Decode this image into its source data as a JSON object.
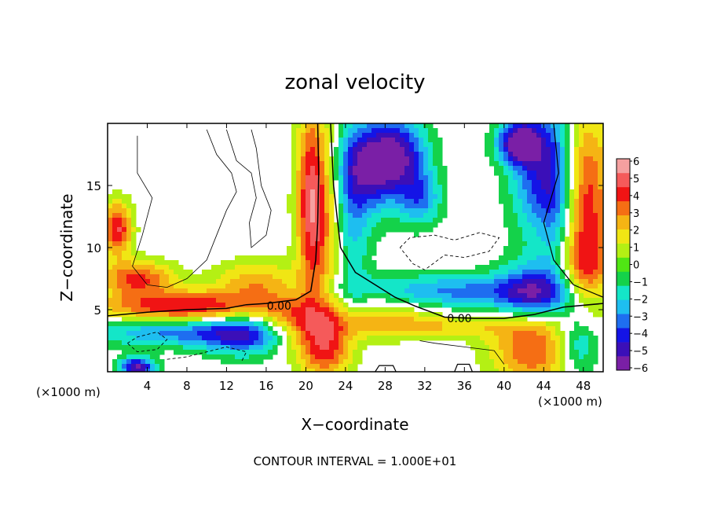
{
  "chart_data": {
    "type": "heatmap",
    "title": "zonal velocity",
    "xlabel": "X−coordinate",
    "ylabel": "Z−coordinate",
    "x_unit_left": "(×1000 m)",
    "x_unit_right": "(×1000 m)",
    "xlim": [
      0,
      50
    ],
    "ylim": [
      0,
      20
    ],
    "xticks": [
      4,
      8,
      12,
      16,
      20,
      24,
      28,
      32,
      36,
      40,
      44,
      48
    ],
    "yticks": [
      5,
      10,
      15
    ],
    "colorbar": {
      "min": -6,
      "max": 6,
      "labels": [
        "6",
        "5",
        "4",
        "3",
        "2",
        "1",
        "0",
        "−1",
        "−2",
        "−3",
        "−4",
        "−5",
        "−6"
      ],
      "colors": [
        "#7a1fa6",
        "#3b0fb8",
        "#1414e6",
        "#1e6ef0",
        "#1ebef0",
        "#14e6c8",
        "#14d24a",
        "#50e614",
        "#b4f014",
        "#f0e614",
        "#f5b414",
        "#f56e14",
        "#f01414",
        "#f55a5a",
        "#f5a0a0"
      ],
      "blank_range": [
        -0.5,
        0.5
      ]
    },
    "contour_labels": [
      "0.00",
      "0.00"
    ],
    "footer": "CONTOUR INTERVAL = 1.000E+01"
  }
}
